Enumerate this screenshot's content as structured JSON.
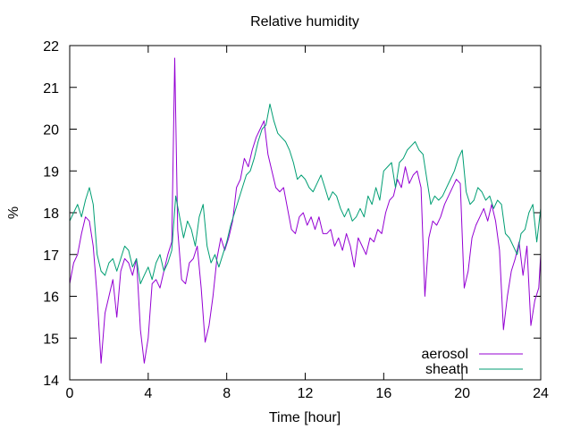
{
  "chart_data": {
    "type": "line",
    "title": "Relative humidity",
    "xlabel": "Time [hour]",
    "ylabel": "%",
    "xlim": [
      0,
      24
    ],
    "ylim": [
      14,
      22
    ],
    "xticks": [
      0,
      4,
      8,
      12,
      16,
      20,
      24
    ],
    "yticks": [
      14,
      15,
      16,
      17,
      18,
      19,
      20,
      21,
      22
    ],
    "grid": false,
    "legend_position": "bottom-right",
    "series": [
      {
        "name": "aerosol",
        "color": "#9400d3",
        "x": [
          0.0,
          0.2,
          0.4,
          0.6,
          0.8,
          1.0,
          1.2,
          1.4,
          1.6,
          1.8,
          2.0,
          2.2,
          2.4,
          2.6,
          2.8,
          3.0,
          3.2,
          3.4,
          3.6,
          3.8,
          4.0,
          4.2,
          4.4,
          4.6,
          4.8,
          5.0,
          5.2,
          5.35,
          5.5,
          5.7,
          5.9,
          6.1,
          6.3,
          6.5,
          6.7,
          6.9,
          7.1,
          7.3,
          7.5,
          7.7,
          7.9,
          8.1,
          8.3,
          8.5,
          8.7,
          8.9,
          9.1,
          9.3,
          9.5,
          9.7,
          9.9,
          10.1,
          10.3,
          10.5,
          10.7,
          10.9,
          11.1,
          11.3,
          11.5,
          11.7,
          11.9,
          12.1,
          12.3,
          12.5,
          12.7,
          12.9,
          13.1,
          13.3,
          13.5,
          13.7,
          13.9,
          14.1,
          14.3,
          14.5,
          14.7,
          14.9,
          15.1,
          15.3,
          15.5,
          15.7,
          15.9,
          16.1,
          16.3,
          16.5,
          16.7,
          16.9,
          17.1,
          17.3,
          17.5,
          17.7,
          17.9,
          18.1,
          18.3,
          18.5,
          18.7,
          18.9,
          19.1,
          19.3,
          19.5,
          19.7,
          19.9,
          20.1,
          20.3,
          20.5,
          20.7,
          20.9,
          21.1,
          21.3,
          21.5,
          21.7,
          21.9,
          22.1,
          22.3,
          22.5,
          22.7,
          22.9,
          23.1,
          23.3,
          23.5,
          23.7,
          23.9,
          24.0
        ],
        "values": [
          16.3,
          16.8,
          17.0,
          17.5,
          17.9,
          17.8,
          17.2,
          16.0,
          14.4,
          15.6,
          16.0,
          16.4,
          15.5,
          16.6,
          16.9,
          16.8,
          16.5,
          16.9,
          15.2,
          14.4,
          15.0,
          16.3,
          16.4,
          16.2,
          16.6,
          17.0,
          17.3,
          21.7,
          17.6,
          16.4,
          16.3,
          16.8,
          16.9,
          17.2,
          16.2,
          14.9,
          15.3,
          16.0,
          16.9,
          17.4,
          17.1,
          17.4,
          17.8,
          18.6,
          18.8,
          19.3,
          19.1,
          19.5,
          19.8,
          20.0,
          20.2,
          19.4,
          19.0,
          18.6,
          18.5,
          18.6,
          18.1,
          17.6,
          17.5,
          17.9,
          18.0,
          17.7,
          17.9,
          17.6,
          17.9,
          17.5,
          17.5,
          17.6,
          17.2,
          17.4,
          17.1,
          17.5,
          17.2,
          16.7,
          17.4,
          17.2,
          17.0,
          17.4,
          17.3,
          17.6,
          17.5,
          18.0,
          18.3,
          18.4,
          18.8,
          18.6,
          19.1,
          18.7,
          18.9,
          19.0,
          18.6,
          16.0,
          17.4,
          17.8,
          17.7,
          17.9,
          18.2,
          18.4,
          18.6,
          18.8,
          18.7,
          16.2,
          16.6,
          17.4,
          17.7,
          17.9,
          18.1,
          17.8,
          18.2,
          17.8,
          17.1,
          15.2,
          16.0,
          16.6,
          16.9,
          17.3,
          16.5,
          17.2,
          15.3,
          15.9,
          16.2,
          17.0
        ]
      },
      {
        "name": "sheath",
        "color": "#009e73",
        "x": [
          0.0,
          0.2,
          0.4,
          0.6,
          0.8,
          1.0,
          1.2,
          1.4,
          1.6,
          1.8,
          2.0,
          2.2,
          2.4,
          2.6,
          2.8,
          3.0,
          3.2,
          3.4,
          3.6,
          3.8,
          4.0,
          4.2,
          4.4,
          4.6,
          4.8,
          5.0,
          5.2,
          5.4,
          5.6,
          5.8,
          6.0,
          6.2,
          6.4,
          6.6,
          6.8,
          7.0,
          7.2,
          7.4,
          7.6,
          7.8,
          8.0,
          8.2,
          8.4,
          8.6,
          8.8,
          9.0,
          9.2,
          9.4,
          9.6,
          9.8,
          10.0,
          10.2,
          10.4,
          10.6,
          10.8,
          11.0,
          11.2,
          11.4,
          11.6,
          11.8,
          12.0,
          12.2,
          12.4,
          12.6,
          12.8,
          13.0,
          13.2,
          13.4,
          13.6,
          13.8,
          14.0,
          14.2,
          14.4,
          14.6,
          14.8,
          15.0,
          15.2,
          15.4,
          15.6,
          15.8,
          16.0,
          16.2,
          16.4,
          16.6,
          16.8,
          17.0,
          17.2,
          17.4,
          17.6,
          17.8,
          18.0,
          18.2,
          18.4,
          18.6,
          18.8,
          19.0,
          19.2,
          19.4,
          19.6,
          19.8,
          20.0,
          20.2,
          20.4,
          20.6,
          20.8,
          21.0,
          21.2,
          21.4,
          21.6,
          21.8,
          22.0,
          22.2,
          22.4,
          22.6,
          22.8,
          23.0,
          23.2,
          23.4,
          23.6,
          23.8,
          24.0
        ],
        "values": [
          17.8,
          18.0,
          18.2,
          17.9,
          18.3,
          18.6,
          18.2,
          17.0,
          16.6,
          16.5,
          16.8,
          16.9,
          16.6,
          16.9,
          17.2,
          17.1,
          16.7,
          16.9,
          16.3,
          16.5,
          16.7,
          16.4,
          16.8,
          17.0,
          16.6,
          16.8,
          17.1,
          18.4,
          17.9,
          17.4,
          17.8,
          17.6,
          17.2,
          17.9,
          18.2,
          17.2,
          16.8,
          17.0,
          16.7,
          17.0,
          17.3,
          17.7,
          18.0,
          18.3,
          18.6,
          18.9,
          19.0,
          19.3,
          19.7,
          20.0,
          20.1,
          20.6,
          20.2,
          19.9,
          19.8,
          19.7,
          19.5,
          19.2,
          18.8,
          18.9,
          18.8,
          18.6,
          18.5,
          18.7,
          18.9,
          18.6,
          18.3,
          18.5,
          18.4,
          18.1,
          17.9,
          18.1,
          17.8,
          17.9,
          18.1,
          17.9,
          18.4,
          18.2,
          18.6,
          18.3,
          19.0,
          19.1,
          19.2,
          18.6,
          19.2,
          19.3,
          19.5,
          19.6,
          19.7,
          19.5,
          19.4,
          18.8,
          18.2,
          18.4,
          18.3,
          18.4,
          18.6,
          18.8,
          19.0,
          19.3,
          19.5,
          18.5,
          18.2,
          18.3,
          18.6,
          18.5,
          18.3,
          18.4,
          18.1,
          18.3,
          18.2,
          17.5,
          17.4,
          17.2,
          17.0,
          17.5,
          17.6,
          18.0,
          18.2,
          17.3,
          18.1
        ]
      }
    ]
  }
}
